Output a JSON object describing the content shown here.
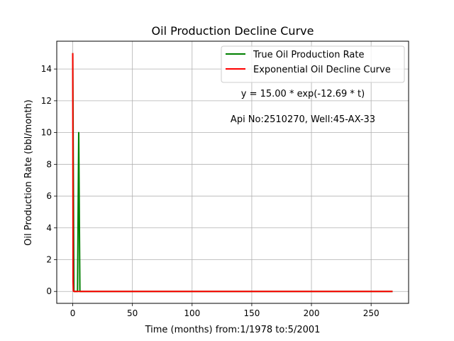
{
  "chart_data": {
    "type": "line",
    "title": "Oil Production Decline Curve",
    "xlabel": "Time (months) from:1/1978 to:5/2001",
    "ylabel": "Oil Production Rate (bbl/month)",
    "xlim": [
      -13.4,
      281.4
    ],
    "ylim": [
      -0.75,
      15.75
    ],
    "x_ticks": [
      0,
      50,
      100,
      150,
      200,
      250
    ],
    "y_ticks": [
      0,
      2,
      4,
      6,
      8,
      10,
      12,
      14
    ],
    "grid": true,
    "legend_position": "top-right",
    "series": [
      {
        "name": "True Oil Production Rate",
        "color": "#008000",
        "x": [
          0,
          1,
          2,
          3,
          4,
          5,
          6,
          7,
          8,
          9,
          10,
          268
        ],
        "y": [
          15,
          0,
          0,
          0,
          0,
          10,
          0,
          0,
          0,
          0,
          0,
          0
        ]
      },
      {
        "name": "Exponential Oil Decline Curve",
        "color": "#ff0000",
        "x": [
          0,
          0.25,
          0.5,
          1,
          2,
          5,
          50,
          100,
          150,
          200,
          268
        ],
        "y": [
          15,
          0.63,
          0.03,
          0,
          0,
          0,
          0,
          0,
          0,
          0,
          0
        ]
      }
    ],
    "annotations": [
      "y = 15.00 * exp(-12.69 * t)",
      "Api No:2510270, Well:45-AX-33"
    ]
  }
}
